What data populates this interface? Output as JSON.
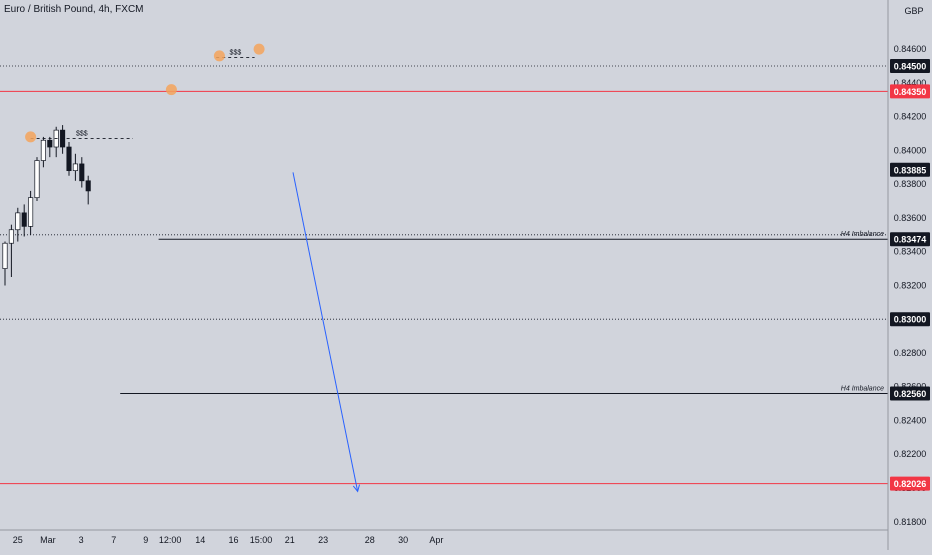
{
  "header": {
    "title": "Euro / British Pound, 4h, FXCM"
  },
  "chart_data": {
    "type": "candlestick",
    "title": "Euro / British Pound, 4h, FXCM",
    "currency": "GBP",
    "ylim": [
      0.8175,
      0.8475
    ],
    "y_ticks": [
      "0.84600",
      "0.84400",
      "0.84200",
      "0.84000",
      "0.83800",
      "0.83600",
      "0.83400",
      "0.83200",
      "0.83000",
      "0.82800",
      "0.82600",
      "0.82400",
      "0.82200",
      "0.82000",
      "0.81800"
    ],
    "x_ticks": [
      {
        "label": "25",
        "i": 2
      },
      {
        "label": "Mar",
        "i": 6.7
      },
      {
        "label": "3",
        "i": 11.9
      },
      {
        "label": "7",
        "i": 17
      },
      {
        "label": "9",
        "i": 22
      },
      {
        "label": "12:00",
        "i": 25.8
      },
      {
        "label": "14",
        "i": 30.5
      },
      {
        "label": "16",
        "i": 35.7
      },
      {
        "label": "15:00",
        "i": 40
      },
      {
        "label": "21",
        "i": 44.5
      },
      {
        "label": "23",
        "i": 49.7
      },
      {
        "label": "28",
        "i": 57
      },
      {
        "label": "30",
        "i": 62.2
      },
      {
        "label": "Apr",
        "i": 67.4
      }
    ],
    "levels": [
      {
        "price": 0.845,
        "label": "0.84500",
        "style": "dotted",
        "color": "#131722",
        "badge": "dark"
      },
      {
        "price": 0.8435,
        "label": "0.84350",
        "style": "solid",
        "color": "#f23645",
        "badge": "red"
      },
      {
        "price": 0.83885,
        "label": "0.83885",
        "style": "none",
        "color": "#131722",
        "badge": "dark"
      },
      {
        "price": 0.83474,
        "label": "0.83474",
        "style": "solid",
        "color": "#131722",
        "badge": "dark",
        "start_i": 24,
        "text": "H4 Imbalance"
      },
      {
        "price": 0.83,
        "label": "0.83000",
        "style": "dotted",
        "color": "#131722",
        "badge": "dark"
      },
      {
        "price": 0.8256,
        "label": "0.82560",
        "style": "solid",
        "color": "#131722",
        "badge": "dark",
        "start_i": 18,
        "text": "H4 Imbalance"
      },
      {
        "price": 0.82026,
        "label": "0.82026",
        "style": "solid",
        "color": "#f23645",
        "badge": "red"
      }
    ],
    "extra_dotted": [
      0.835
    ],
    "liquidity": [
      {
        "label": "$$$",
        "price": 0.8407,
        "start_i": 4,
        "end_i": 20
      },
      {
        "label": "$$$",
        "price": 0.8455,
        "start_i": 33,
        "end_i": 39
      }
    ],
    "markers": [
      {
        "i": 4,
        "price": 0.8408
      },
      {
        "i": 26,
        "price": 0.8436
      },
      {
        "i": 33.5,
        "price": 0.8456
      },
      {
        "i": 39.7,
        "price": 0.846
      }
    ],
    "arrow": {
      "from_i": 45,
      "from_price": 0.8387,
      "to_i": 55.1,
      "to_price": 0.8198
    },
    "candles": [
      [
        0.833,
        0.8345,
        0.832,
        0.8346
      ],
      [
        0.8345,
        0.8353,
        0.8325,
        0.8356
      ],
      [
        0.8353,
        0.8363,
        0.8346,
        0.8366
      ],
      [
        0.8363,
        0.8355,
        0.8349,
        0.8368
      ],
      [
        0.8355,
        0.8372,
        0.835,
        0.8376
      ],
      [
        0.8372,
        0.8394,
        0.837,
        0.8396
      ],
      [
        0.8394,
        0.8406,
        0.839,
        0.8408
      ],
      [
        0.8406,
        0.8402,
        0.8396,
        0.8408
      ],
      [
        0.8402,
        0.8412,
        0.8396,
        0.8414
      ],
      [
        0.8412,
        0.8402,
        0.8398,
        0.8415
      ],
      [
        0.8402,
        0.8388,
        0.8385,
        0.8405
      ],
      [
        0.8388,
        0.8392,
        0.8382,
        0.8398
      ],
      [
        0.8392,
        0.8382,
        0.8378,
        0.8396
      ],
      [
        0.8382,
        0.8376,
        0.8368,
        0.8385
      ]
    ]
  }
}
